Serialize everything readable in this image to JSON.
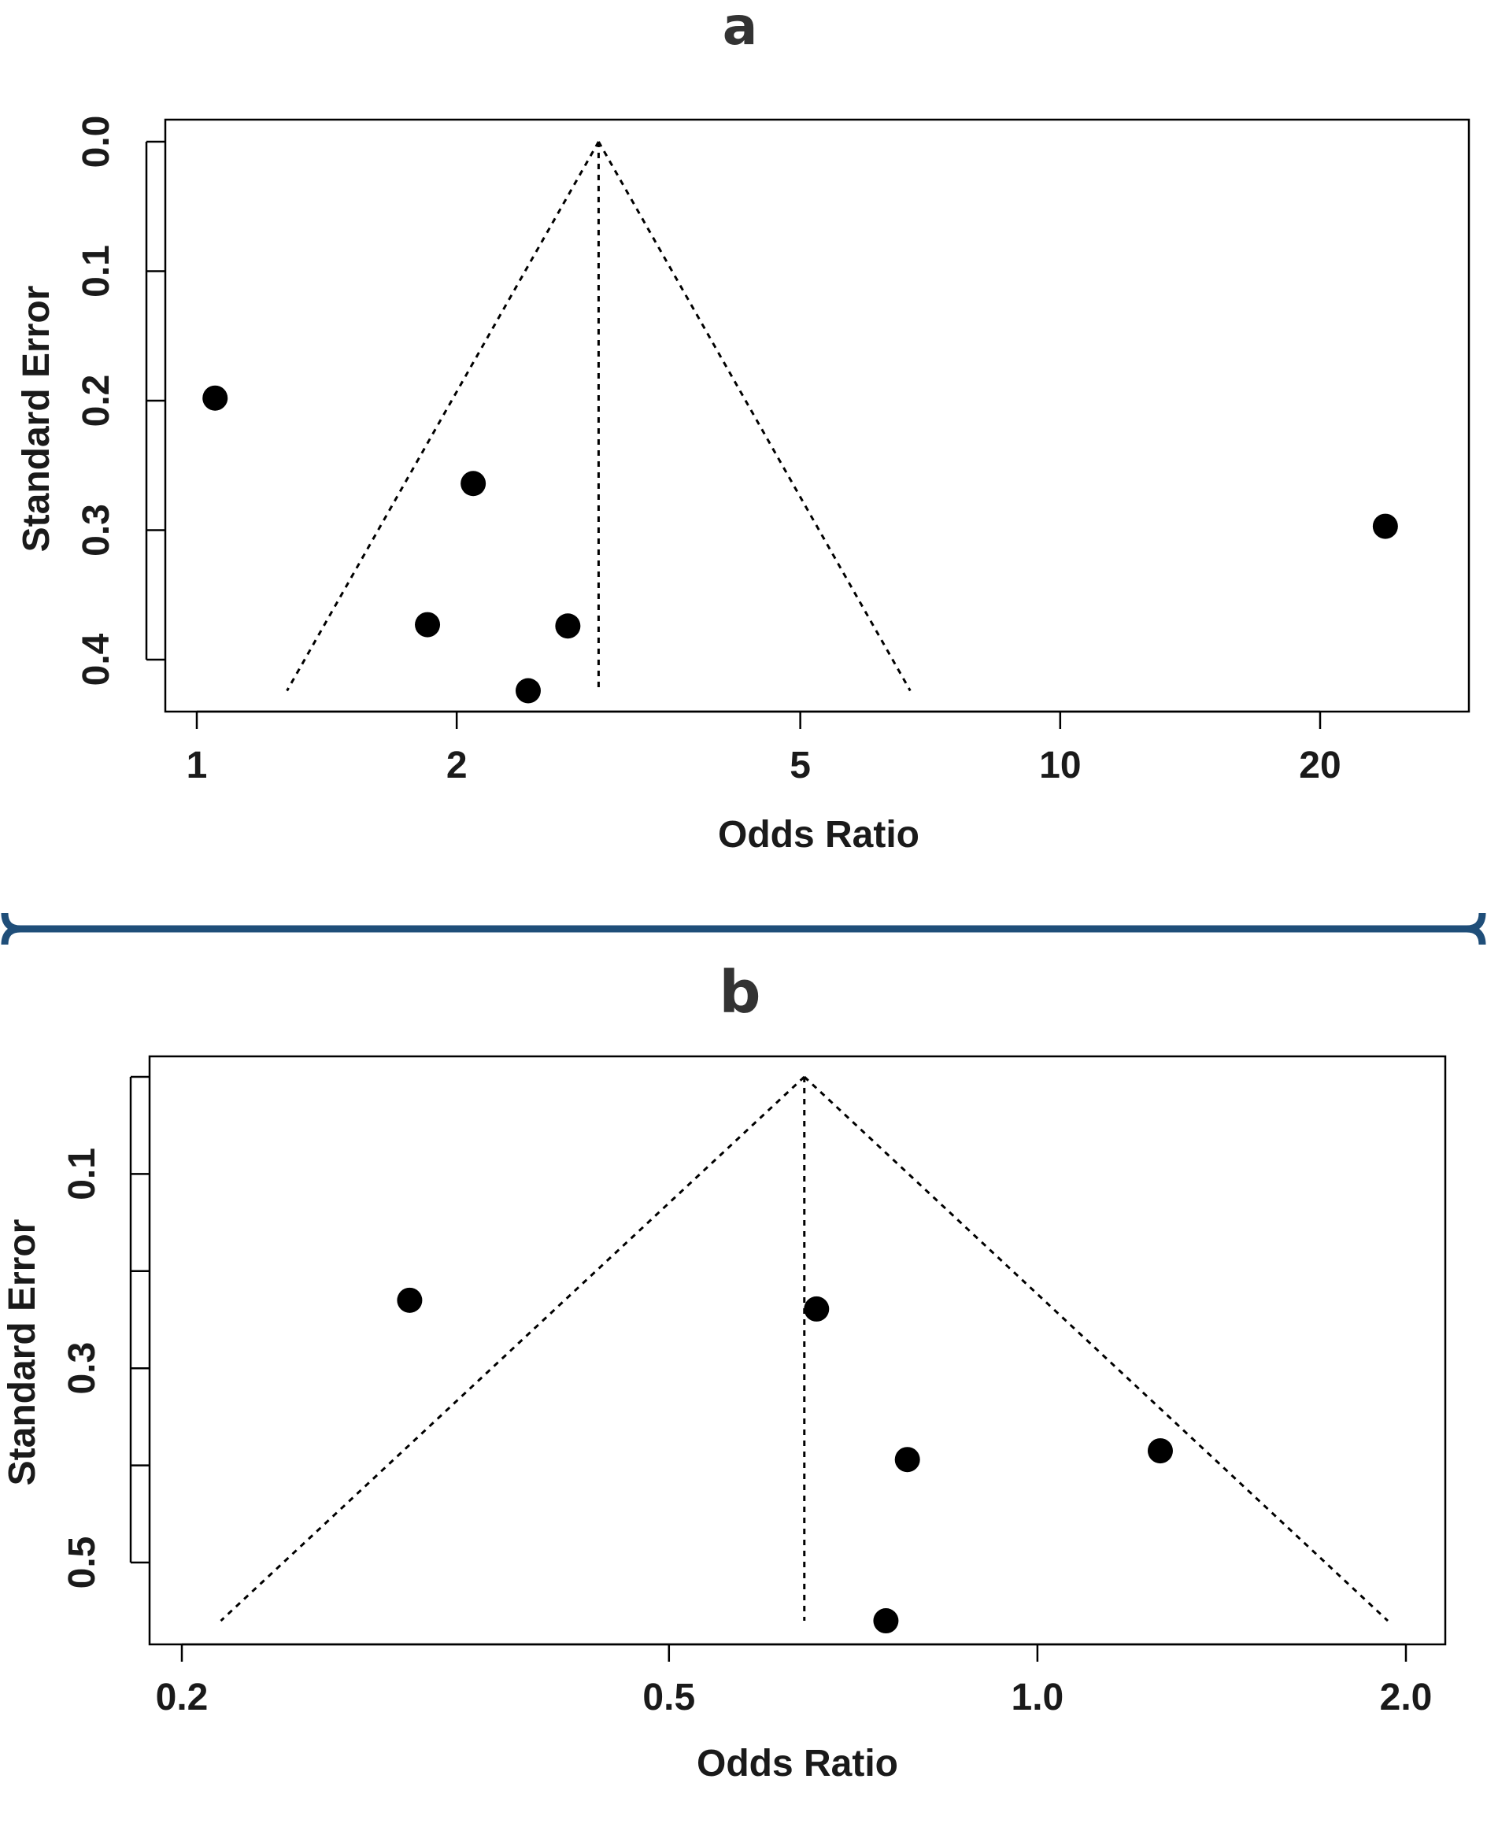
{
  "divider_color": "#1f4e79",
  "chart_data": [
    {
      "panel": "a",
      "type": "scatter",
      "subtype": "funnel plot",
      "xlabel": "Odds Ratio",
      "ylabel": "Standard Error",
      "x_scale": "log",
      "y_inverted": true,
      "xlim": [
        0.96,
        26
      ],
      "ylim": [
        0,
        0.44
      ],
      "x_ticks": [
        1,
        2,
        5,
        10,
        20
      ],
      "x_tick_labels": [
        "1",
        "2",
        "5",
        "10",
        "20"
      ],
      "y_ticks": [
        0.0,
        0.1,
        0.2,
        0.3,
        0.4
      ],
      "y_tick_labels": [
        "0.0",
        "0.1",
        "0.2",
        "0.3",
        "0.4"
      ],
      "grid": false,
      "pooled_or": 2.92,
      "funnel_max_se": 0.424,
      "points": [
        {
          "or": 1.05,
          "se": 0.198
        },
        {
          "or": 2.09,
          "se": 0.264
        },
        {
          "or": 1.85,
          "se": 0.373
        },
        {
          "or": 2.69,
          "se": 0.374
        },
        {
          "or": 2.42,
          "se": 0.424
        },
        {
          "or": 23.8,
          "se": 0.297
        }
      ]
    },
    {
      "panel": "b",
      "type": "scatter",
      "subtype": "funnel plot",
      "xlabel": "Odds Ratio",
      "ylabel": "Standard Error",
      "x_scale": "log",
      "y_inverted": true,
      "xlim": [
        0.195,
        2.1
      ],
      "ylim": [
        0,
        0.58
      ],
      "x_ticks": [
        0.2,
        0.5,
        1.0,
        2.0
      ],
      "x_tick_labels": [
        "0.2",
        "0.5",
        "1.0",
        "2.0"
      ],
      "y_ticks": [
        0.0,
        0.1,
        0.2,
        0.3,
        0.4,
        0.5
      ],
      "y_tick_labels": [
        "",
        "0.1",
        "",
        "0.3",
        "",
        "0.5"
      ],
      "grid": false,
      "pooled_or": 0.645,
      "funnel_max_se": 0.56,
      "points": [
        {
          "or": 0.307,
          "se": 0.23
        },
        {
          "or": 0.66,
          "se": 0.239
        },
        {
          "or": 0.783,
          "se": 0.394
        },
        {
          "or": 1.26,
          "se": 0.385
        },
        {
          "or": 0.752,
          "se": 0.56
        }
      ]
    }
  ]
}
